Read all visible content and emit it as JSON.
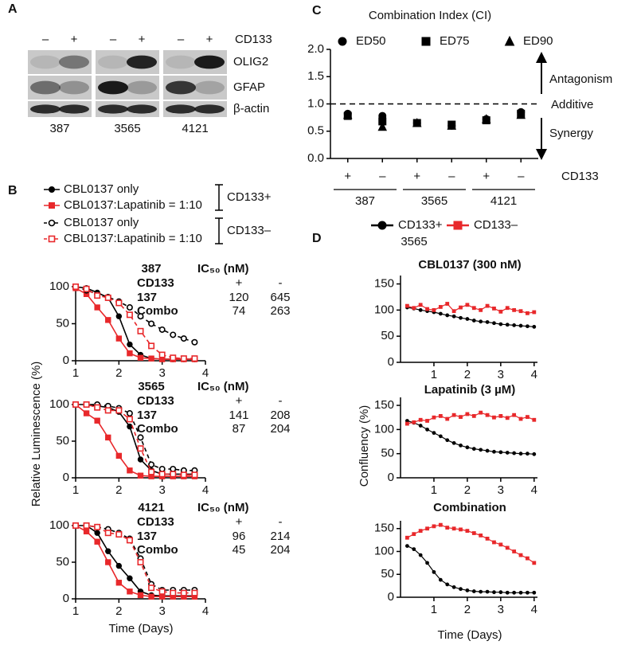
{
  "panels": [
    "A",
    "B",
    "C",
    "D"
  ],
  "blot": {
    "lanes": [
      "–",
      "+",
      "–",
      "+",
      "–",
      "+"
    ],
    "marker": "CD133",
    "proteins": [
      "OLIG2",
      "GFAP",
      "β-actin"
    ],
    "cell_lines": [
      "387",
      "3565",
      "4121"
    ]
  },
  "chart_data": [
    {
      "type": "scatter",
      "title": "Combination Index (CI)",
      "categories": [
        "+",
        "–",
        "+",
        "–",
        "+",
        "–"
      ],
      "groups": [
        "387",
        "3565",
        "4121"
      ],
      "category_axis_label": "CD133",
      "ylim": [
        0,
        2
      ],
      "yticks": [
        {
          "value": 0,
          "label": "0.0"
        },
        {
          "value": 0.5,
          "label": "0.5"
        },
        {
          "value": 1,
          "label": "1.0"
        },
        {
          "value": 1.5,
          "label": "1.5"
        },
        {
          "value": 2,
          "label": "2.0"
        }
      ],
      "reference_line": 1,
      "annotations": [
        "Antagonism",
        "Additive",
        "Synergy"
      ],
      "series": [
        {
          "name": "ED50",
          "color": "#000000",
          "marker": "circle",
          "values": [
            0.82,
            0.78,
            0.65,
            0.6,
            0.72,
            0.85
          ]
        },
        {
          "name": "ED75",
          "color": "#000000",
          "marker": "square",
          "values": [
            0.78,
            0.68,
            0.65,
            0.62,
            0.7,
            0.82
          ]
        },
        {
          "name": "ED90",
          "color": "#000000",
          "marker": "triangle",
          "values": [
            0.8,
            0.58,
            0.65,
            0.6,
            0.72,
            0.8
          ]
        }
      ]
    },
    {
      "type": "line",
      "title": "387",
      "ylabel": "Relative Luminescence (%)",
      "legend_groups": [
        "CD133+",
        "CD133–"
      ],
      "x": [
        1.0,
        1.25,
        1.5,
        1.75,
        2.0,
        2.25,
        2.5,
        2.75,
        3.0,
        3.25,
        3.5,
        3.75
      ],
      "xlim": [
        1,
        4
      ],
      "xticks": [
        1,
        2,
        3,
        4
      ],
      "ylim": [
        0,
        100
      ],
      "yticks": [
        0,
        50,
        100
      ],
      "ic50_table": {
        "header": "IC₅₀ (nM)",
        "columns": [
          "CD133",
          "+",
          "-"
        ],
        "rows": [
          [
            "137",
            120,
            645
          ],
          [
            "Combo",
            74,
            263
          ]
        ]
      },
      "series": [
        {
          "name": "CBL0137 only",
          "color": "#000000",
          "marker": "circle",
          "open": false,
          "dash": false,
          "values": [
            100,
            98,
            92,
            85,
            60,
            22,
            8,
            3,
            2,
            2,
            2,
            2
          ]
        },
        {
          "name": "CBL0137:Lapatinib = 1:10",
          "color": "#e8282b",
          "marker": "square",
          "open": false,
          "dash": false,
          "values": [
            98,
            90,
            72,
            55,
            30,
            10,
            4,
            3,
            2,
            2,
            2,
            2
          ]
        },
        {
          "name": "CBL0137 only",
          "color": "#000000",
          "marker": "circle",
          "open": true,
          "dash": true,
          "values": [
            100,
            95,
            90,
            86,
            80,
            72,
            60,
            50,
            42,
            35,
            30,
            25
          ]
        },
        {
          "name": "CBL0137:Lapatinib = 1:10",
          "color": "#e8282b",
          "marker": "square",
          "open": true,
          "dash": true,
          "values": [
            100,
            97,
            88,
            85,
            78,
            62,
            40,
            20,
            8,
            4,
            3,
            3
          ]
        }
      ]
    },
    {
      "type": "line",
      "title": "3565",
      "x": [
        1.0,
        1.25,
        1.5,
        1.75,
        2.0,
        2.25,
        2.5,
        2.75,
        3.0,
        3.25,
        3.5,
        3.75
      ],
      "xlim": [
        1,
        4
      ],
      "xticks": [
        1,
        2,
        3,
        4
      ],
      "ylim": [
        0,
        100
      ],
      "yticks": [
        0,
        50,
        100
      ],
      "ic50_table": {
        "header": "IC₅₀ (nM)",
        "columns": [
          "CD133",
          "+",
          "-"
        ],
        "rows": [
          [
            "137",
            141,
            208
          ],
          [
            "Combo",
            87,
            204
          ]
        ]
      },
      "series": [
        {
          "name": "CBL0137 only",
          "color": "#000000",
          "marker": "circle",
          "open": false,
          "dash": false,
          "values": [
            100,
            100,
            98,
            96,
            90,
            70,
            25,
            10,
            5,
            5,
            5,
            5
          ]
        },
        {
          "name": "CBL0137:Lapatinib = 1:10",
          "color": "#e8282b",
          "marker": "square",
          "open": false,
          "dash": false,
          "values": [
            100,
            88,
            78,
            55,
            30,
            10,
            3,
            2,
            2,
            2,
            2,
            2
          ]
        },
        {
          "name": "CBL0137 only",
          "color": "#000000",
          "marker": "circle",
          "open": true,
          "dash": true,
          "values": [
            100,
            100,
            100,
            98,
            95,
            88,
            55,
            18,
            12,
            12,
            10,
            10
          ]
        },
        {
          "name": "CBL0137:Lapatinib = 1:10",
          "color": "#e8282b",
          "marker": "square",
          "open": true,
          "dash": true,
          "values": [
            100,
            100,
            96,
            92,
            92,
            80,
            40,
            8,
            5,
            5,
            4,
            4
          ]
        }
      ]
    },
    {
      "type": "line",
      "title": "4121",
      "xlabel": "Time (Days)",
      "x": [
        1.0,
        1.25,
        1.5,
        1.75,
        2.0,
        2.25,
        2.5,
        2.75,
        3.0,
        3.25,
        3.5,
        3.75
      ],
      "xlim": [
        1,
        4
      ],
      "xticks": [
        1,
        2,
        3,
        4
      ],
      "ylim": [
        0,
        100
      ],
      "yticks": [
        0,
        50,
        100
      ],
      "ic50_table": {
        "header": "IC₅₀ (nM)",
        "columns": [
          "CD133",
          "+",
          "-"
        ],
        "rows": [
          [
            "137",
            96,
            214
          ],
          [
            "Combo",
            45,
            204
          ]
        ]
      },
      "series": [
        {
          "name": "CBL0137 only",
          "color": "#000000",
          "marker": "circle",
          "open": false,
          "dash": false,
          "values": [
            100,
            100,
            90,
            65,
            45,
            28,
            10,
            5,
            4,
            4,
            4,
            4
          ]
        },
        {
          "name": "CBL0137:Lapatinib = 1:10",
          "color": "#e8282b",
          "marker": "square",
          "open": false,
          "dash": false,
          "values": [
            100,
            92,
            78,
            50,
            22,
            10,
            5,
            3,
            3,
            3,
            3,
            3
          ]
        },
        {
          "name": "CBL0137 only",
          "color": "#000000",
          "marker": "circle",
          "open": true,
          "dash": true,
          "values": [
            100,
            100,
            98,
            95,
            90,
            82,
            55,
            20,
            12,
            12,
            12,
            12
          ]
        },
        {
          "name": "CBL0137:Lapatinib = 1:10",
          "color": "#e8282b",
          "marker": "square",
          "open": true,
          "dash": true,
          "values": [
            100,
            100,
            98,
            90,
            88,
            80,
            50,
            15,
            10,
            8,
            8,
            8
          ]
        }
      ]
    },
    {
      "type": "line",
      "title": "CBL0137 (300 nM)",
      "legend_title": "3565",
      "x": [
        0.2,
        0.4,
        0.6,
        0.8,
        1.0,
        1.2,
        1.4,
        1.6,
        1.8,
        2.0,
        2.2,
        2.4,
        2.6,
        2.8,
        3.0,
        3.2,
        3.4,
        3.6,
        3.8,
        4.0
      ],
      "xlim": [
        0,
        4.1
      ],
      "xticks": [
        1,
        2,
        3,
        4
      ],
      "ylim": [
        0,
        160
      ],
      "yticks": [
        0,
        50,
        100,
        150
      ],
      "series": [
        {
          "name": "CD133+",
          "color": "#000000",
          "marker": "circle",
          "values": [
            105,
            103,
            100,
            98,
            96,
            93,
            90,
            88,
            85,
            83,
            80,
            78,
            77,
            75,
            73,
            72,
            71,
            70,
            69,
            68
          ]
        },
        {
          "name": "CD133–",
          "color": "#e8282b",
          "marker": "square",
          "values": [
            108,
            104,
            110,
            102,
            100,
            106,
            112,
            98,
            105,
            110,
            104,
            100,
            108,
            103,
            97,
            104,
            100,
            98,
            94,
            96
          ]
        }
      ]
    },
    {
      "type": "line",
      "title": "Lapatinib (3 µM)",
      "ylabel": "Confluency (%)",
      "x": [
        0.2,
        0.4,
        0.6,
        0.8,
        1.0,
        1.2,
        1.4,
        1.6,
        1.8,
        2.0,
        2.2,
        2.4,
        2.6,
        2.8,
        3.0,
        3.2,
        3.4,
        3.6,
        3.8,
        4.0
      ],
      "xlim": [
        0,
        4.1
      ],
      "xticks": [
        1,
        2,
        3,
        4
      ],
      "ylim": [
        0,
        160
      ],
      "yticks": [
        0,
        50,
        100,
        150
      ],
      "series": [
        {
          "name": "CD133+",
          "color": "#000000",
          "marker": "circle",
          "values": [
            118,
            114,
            108,
            100,
            93,
            86,
            78,
            72,
            67,
            63,
            60,
            58,
            56,
            54,
            53,
            52,
            51,
            50,
            50,
            49
          ]
        },
        {
          "name": "CD133–",
          "color": "#e8282b",
          "marker": "square",
          "values": [
            112,
            115,
            120,
            118,
            125,
            128,
            122,
            130,
            126,
            132,
            128,
            135,
            130,
            125,
            128,
            124,
            130,
            122,
            126,
            120
          ]
        }
      ]
    },
    {
      "type": "line",
      "title": "Combination",
      "xlabel": "Time (Days)",
      "x": [
        0.2,
        0.4,
        0.6,
        0.8,
        1.0,
        1.2,
        1.4,
        1.6,
        1.8,
        2.0,
        2.2,
        2.4,
        2.6,
        2.8,
        3.0,
        3.2,
        3.4,
        3.6,
        3.8,
        4.0
      ],
      "xlim": [
        0,
        4.1
      ],
      "xticks": [
        1,
        2,
        3,
        4
      ],
      "ylim": [
        0,
        160
      ],
      "yticks": [
        0,
        50,
        100,
        150
      ],
      "series": [
        {
          "name": "CD133+",
          "color": "#000000",
          "marker": "circle",
          "values": [
            112,
            105,
            92,
            75,
            55,
            38,
            28,
            22,
            18,
            15,
            13,
            12,
            12,
            11,
            11,
            10,
            10,
            10,
            10,
            10
          ]
        },
        {
          "name": "CD133–",
          "color": "#e8282b",
          "marker": "square",
          "values": [
            130,
            138,
            145,
            150,
            155,
            158,
            152,
            150,
            148,
            145,
            140,
            135,
            128,
            120,
            115,
            108,
            100,
            92,
            85,
            75
          ]
        }
      ]
    }
  ]
}
